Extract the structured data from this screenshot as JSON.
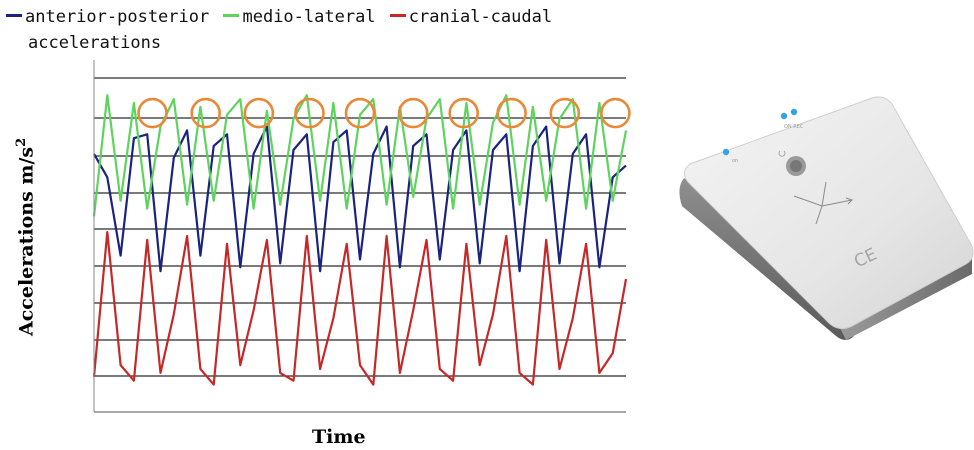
{
  "legend": {
    "items": [
      {
        "label": "anterior-posterior",
        "color": "#1a237e"
      },
      {
        "label": "medio-lateral",
        "color": "#5ed45e"
      },
      {
        "label": "cranial-caudal",
        "color": "#c62828"
      }
    ],
    "continuation": "accelerations"
  },
  "axes": {
    "ylabel_main": "Accelerations m/s",
    "ylabel_sup": "2",
    "xlabel": "Time"
  },
  "chart_data": {
    "type": "line",
    "xlabel": "Time",
    "ylabel": "Accelerations m/s2",
    "grid": "horizontal",
    "legend_position": "top",
    "x_ticks": "none",
    "y_ticks": "none",
    "x": [
      0,
      2.5,
      5,
      7.5,
      10,
      12.5,
      15,
      17.5,
      20,
      22.5,
      25,
      27.5,
      30,
      32.5,
      35,
      37.5,
      40,
      42.5,
      45,
      47.5,
      50,
      52.5,
      55,
      57.5,
      60,
      62.5,
      65,
      67.5,
      70,
      72.5,
      75,
      77.5,
      80,
      82.5,
      85,
      87.5,
      90,
      92.5,
      95,
      97.5,
      100
    ],
    "series": [
      {
        "name": "anterior-posterior",
        "color": "#1a237e",
        "values": [
          6.6,
          6.0,
          4.0,
          7.0,
          7.1,
          3.6,
          6.5,
          7.2,
          4.0,
          6.8,
          7.1,
          3.7,
          6.6,
          7.3,
          3.8,
          6.7,
          7.1,
          3.6,
          6.9,
          7.2,
          3.9,
          6.6,
          7.3,
          3.7,
          6.8,
          7.1,
          3.9,
          6.7,
          7.2,
          3.8,
          6.7,
          7.1,
          3.6,
          6.8,
          7.3,
          3.8,
          6.6,
          7.1,
          3.7,
          6.0,
          6.3
        ]
      },
      {
        "name": "medio-lateral",
        "color": "#5ed45e",
        "values": [
          5.0,
          8.1,
          5.4,
          7.9,
          5.2,
          7.3,
          8.0,
          5.3,
          7.8,
          5.4,
          7.6,
          8.0,
          5.2,
          7.7,
          5.3,
          7.5,
          8.1,
          5.4,
          7.9,
          5.2,
          7.6,
          8.0,
          5.3,
          7.8,
          5.5,
          7.5,
          8.0,
          5.2,
          7.9,
          5.3,
          7.4,
          8.1,
          5.3,
          7.8,
          5.4,
          7.5,
          8.0,
          5.2,
          7.9,
          5.4,
          7.2
        ]
      },
      {
        "name": "cranial-caudal",
        "color": "#c62828",
        "values": [
          0.9,
          4.6,
          1.2,
          0.8,
          4.4,
          1.0,
          2.5,
          4.5,
          1.1,
          0.7,
          4.3,
          1.2,
          2.6,
          4.4,
          1.0,
          0.8,
          4.5,
          1.1,
          2.4,
          4.3,
          1.2,
          0.7,
          4.5,
          1.0,
          2.6,
          4.4,
          1.1,
          0.8,
          4.3,
          1.2,
          2.5,
          4.5,
          1.0,
          0.7,
          4.4,
          1.1,
          2.4,
          4.3,
          1.0,
          1.5,
          3.4
        ]
      }
    ],
    "annotations": {
      "type": "circle-markers",
      "color": "#e8893a",
      "description_markers_on": "medio-lateral peaks",
      "x": [
        11,
        21,
        31,
        40.5,
        50,
        60,
        69.5,
        78.5,
        88.5,
        98
      ],
      "y": [
        8.0,
        8.0,
        8.0,
        8.0,
        8.0,
        8.0,
        8.0,
        8.0,
        8.0,
        8.0
      ]
    },
    "ylim": [
      0,
      9
    ],
    "xlim": [
      0,
      100
    ]
  },
  "device": {
    "mark": "CE"
  }
}
